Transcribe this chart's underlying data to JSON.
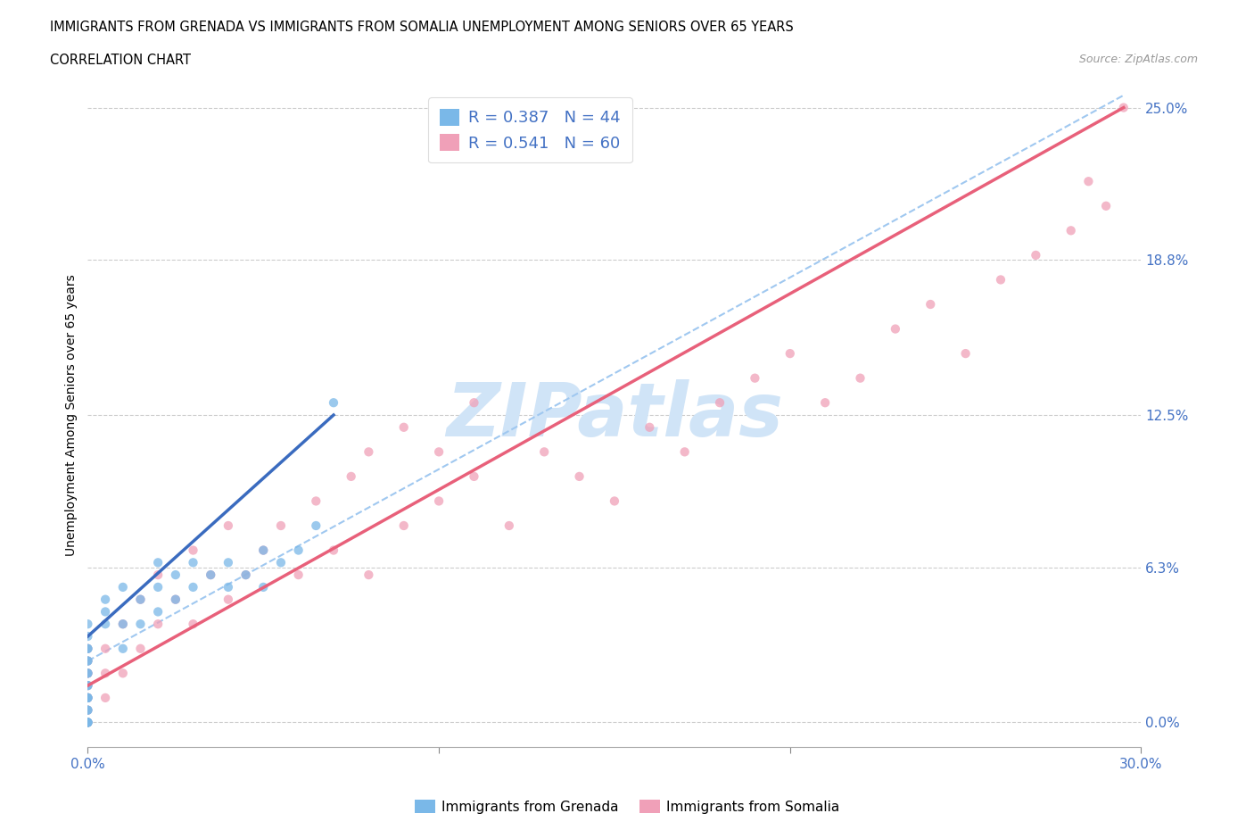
{
  "title_line1": "IMMIGRANTS FROM GRENADA VS IMMIGRANTS FROM SOMALIA UNEMPLOYMENT AMONG SENIORS OVER 65 YEARS",
  "title_line2": "CORRELATION CHART",
  "source_text": "Source: ZipAtlas.com",
  "ylabel": "Unemployment Among Seniors over 65 years",
  "xmin": 0.0,
  "xmax": 0.3,
  "ymin": -0.01,
  "ymax": 0.26,
  "yticks": [
    0.0,
    0.063,
    0.125,
    0.188,
    0.25
  ],
  "ytick_labels": [
    "0.0%",
    "6.3%",
    "12.5%",
    "18.8%",
    "25.0%"
  ],
  "xticks": [
    0.0,
    0.1,
    0.2,
    0.3
  ],
  "xtick_labels": [
    "0.0%",
    "",
    "",
    "30.0%"
  ],
  "grid_color": "#cccccc",
  "watermark_text": "ZIPatlas",
  "watermark_color": "#d0e4f7",
  "grenada_color": "#7ab8e8",
  "somalia_color": "#f0a0b8",
  "grenada_line_color": "#3a6bbf",
  "grenada_dash_color": "#a0c8f0",
  "somalia_line_color": "#e8607a",
  "axis_label_color": "#4472c4",
  "legend_r_grenada": "R = 0.387",
  "legend_n_grenada": "N = 44",
  "legend_r_somalia": "R = 0.541",
  "legend_n_somalia": "N = 60",
  "grenada_x": [
    0.0,
    0.0,
    0.0,
    0.0,
    0.0,
    0.0,
    0.0,
    0.0,
    0.0,
    0.0,
    0.0,
    0.0,
    0.0,
    0.0,
    0.0,
    0.0,
    0.0,
    0.0,
    0.0,
    0.005,
    0.005,
    0.005,
    0.01,
    0.01,
    0.01,
    0.015,
    0.015,
    0.02,
    0.02,
    0.02,
    0.025,
    0.025,
    0.03,
    0.03,
    0.035,
    0.04,
    0.04,
    0.045,
    0.05,
    0.05,
    0.055,
    0.06,
    0.065,
    0.07
  ],
  "grenada_y": [
    0.0,
    0.0,
    0.0,
    0.0,
    0.005,
    0.005,
    0.01,
    0.01,
    0.01,
    0.015,
    0.015,
    0.02,
    0.02,
    0.025,
    0.025,
    0.03,
    0.03,
    0.035,
    0.04,
    0.04,
    0.045,
    0.05,
    0.03,
    0.04,
    0.055,
    0.04,
    0.05,
    0.045,
    0.055,
    0.065,
    0.05,
    0.06,
    0.055,
    0.065,
    0.06,
    0.055,
    0.065,
    0.06,
    0.055,
    0.07,
    0.065,
    0.07,
    0.08,
    0.13
  ],
  "somalia_x": [
    0.0,
    0.0,
    0.0,
    0.0,
    0.0,
    0.0,
    0.0,
    0.0,
    0.0,
    0.0,
    0.005,
    0.005,
    0.005,
    0.01,
    0.01,
    0.015,
    0.015,
    0.02,
    0.02,
    0.025,
    0.03,
    0.03,
    0.035,
    0.04,
    0.04,
    0.045,
    0.05,
    0.055,
    0.06,
    0.065,
    0.07,
    0.075,
    0.08,
    0.08,
    0.09,
    0.09,
    0.1,
    0.1,
    0.11,
    0.11,
    0.12,
    0.13,
    0.14,
    0.15,
    0.16,
    0.17,
    0.18,
    0.19,
    0.2,
    0.21,
    0.22,
    0.23,
    0.24,
    0.25,
    0.26,
    0.27,
    0.28,
    0.285,
    0.29,
    0.295
  ],
  "somalia_y": [
    0.0,
    0.0,
    0.005,
    0.01,
    0.01,
    0.015,
    0.02,
    0.02,
    0.025,
    0.03,
    0.01,
    0.02,
    0.03,
    0.02,
    0.04,
    0.03,
    0.05,
    0.04,
    0.06,
    0.05,
    0.04,
    0.07,
    0.06,
    0.05,
    0.08,
    0.06,
    0.07,
    0.08,
    0.06,
    0.09,
    0.07,
    0.1,
    0.06,
    0.11,
    0.08,
    0.12,
    0.09,
    0.11,
    0.1,
    0.13,
    0.08,
    0.11,
    0.1,
    0.09,
    0.12,
    0.11,
    0.13,
    0.14,
    0.15,
    0.13,
    0.14,
    0.16,
    0.17,
    0.15,
    0.18,
    0.19,
    0.2,
    0.22,
    0.21,
    0.25
  ],
  "grenada_line_x0": 0.0,
  "grenada_line_x1": 0.07,
  "grenada_line_y0": 0.035,
  "grenada_line_y1": 0.125,
  "somalia_line_x0": 0.0,
  "somalia_line_x1": 0.295,
  "somalia_line_y0": 0.015,
  "somalia_line_y1": 0.25,
  "dash_line_x0": 0.0,
  "dash_line_x1": 0.295,
  "dash_line_y0": 0.025,
  "dash_line_y1": 0.255
}
